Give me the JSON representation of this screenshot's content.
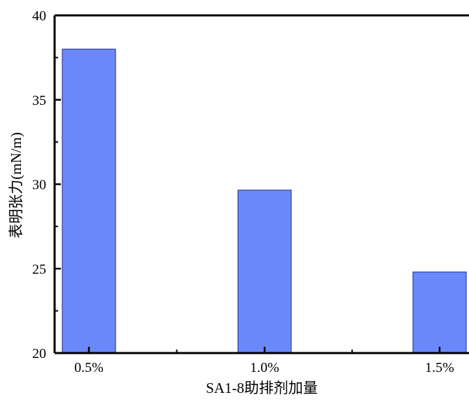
{
  "chart_data": {
    "type": "bar",
    "categories": [
      "0.5%",
      "1.0%",
      "1.5%"
    ],
    "values": [
      38.0,
      29.65,
      24.8
    ],
    "title": "",
    "xlabel": "SA1-8助排剂加量",
    "ylabel": "表明张力(mN/m)",
    "ylim": [
      20,
      40
    ],
    "yticks": [
      20,
      25,
      30,
      35,
      40
    ],
    "grid": false,
    "legend": "none",
    "bar_color": "#6b88fb",
    "bar_edge_color": "#2f3f9a",
    "axis_color": "#000000"
  }
}
